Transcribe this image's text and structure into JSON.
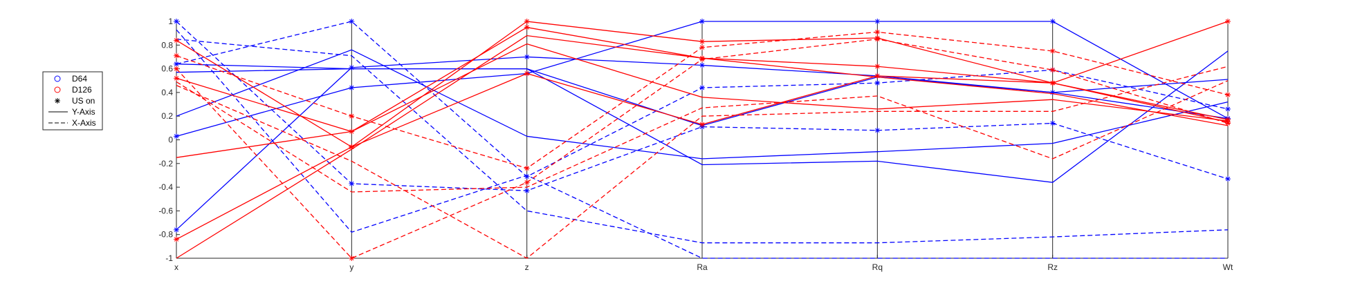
{
  "chart_data": {
    "type": "parallel-coordinates",
    "axes": [
      "x",
      "y",
      "z",
      "Ra",
      "Rq",
      "Rz",
      "Wt"
    ],
    "ylim": [
      -1,
      1
    ],
    "yticks": [
      "-1",
      "-0.8",
      "-0.6",
      "-0.4",
      "-0.2",
      "0",
      "0.2",
      "0.4",
      "0.6",
      "0.8",
      "1"
    ],
    "grid": false,
    "legend_position": "left",
    "legend": [
      {
        "label": "D64",
        "marker": "circle",
        "color": "#0000ff"
      },
      {
        "label": "D126",
        "marker": "circle",
        "color": "#ff0000"
      },
      {
        "label": "US on",
        "marker": "asterisk",
        "color": "#000000"
      },
      {
        "label": "Y-Axis",
        "linestyle": "solid",
        "color": "#000000"
      },
      {
        "label": "X-Axis",
        "linestyle": "dashed",
        "color": "#000000"
      }
    ],
    "colors": {
      "D64": "#0000ff",
      "D126": "#ff0000"
    },
    "series": [
      {
        "group": "D64",
        "style": "solid",
        "us_on": true,
        "values": [
          -0.76,
          0.61,
          0.7,
          0.63,
          0.54,
          0.4,
          0.18
        ]
      },
      {
        "group": "D64",
        "style": "solid",
        "us_on": true,
        "values": [
          0.03,
          0.44,
          0.56,
          1.0,
          1.0,
          1.0,
          0.18
        ]
      },
      {
        "group": "D64",
        "style": "solid",
        "us_on": false,
        "values": [
          0.57,
          0.6,
          0.6,
          0.12,
          0.53,
          0.4,
          0.51
        ]
      },
      {
        "group": "D64",
        "style": "solid",
        "us_on": false,
        "values": [
          0.2,
          0.76,
          0.03,
          -0.16,
          -0.1,
          -0.03,
          0.32
        ]
      },
      {
        "group": "D64",
        "style": "solid",
        "us_on": false,
        "values": [
          0.64,
          0.6,
          0.6,
          -0.21,
          -0.18,
          -0.36,
          0.75
        ]
      },
      {
        "group": "D64",
        "style": "dashed",
        "us_on": true,
        "values": [
          0.64,
          1.0,
          -0.31,
          0.44,
          0.48,
          0.59,
          0.26
        ]
      },
      {
        "group": "D64",
        "style": "dashed",
        "us_on": true,
        "values": [
          1.0,
          -0.37,
          -0.43,
          0.11,
          0.08,
          0.14,
          -0.33
        ]
      },
      {
        "group": "D64",
        "style": "dashed",
        "us_on": false,
        "values": [
          0.85,
          0.71,
          -0.6,
          -0.87,
          -0.87,
          -0.82,
          -0.76
        ]
      },
      {
        "group": "D64",
        "style": "dashed",
        "us_on": false,
        "values": [
          0.93,
          -0.78,
          -0.3,
          -1.0,
          -1.0,
          -1.0,
          -1.0
        ]
      },
      {
        "group": "D126",
        "style": "solid",
        "us_on": true,
        "values": [
          -0.84,
          -0.06,
          1.0,
          0.83,
          0.86,
          0.48,
          0.17
        ]
      },
      {
        "group": "D126",
        "style": "solid",
        "us_on": true,
        "values": [
          0.52,
          0.07,
          0.95,
          0.69,
          0.62,
          0.48,
          1.0
        ]
      },
      {
        "group": "D126",
        "style": "solid",
        "us_on": false,
        "values": [
          -1.0,
          -0.08,
          0.88,
          0.69,
          0.53,
          0.39,
          0.12
        ]
      },
      {
        "group": "D126",
        "style": "solid",
        "us_on": false,
        "values": [
          -0.15,
          0.07,
          0.81,
          0.36,
          0.26,
          0.34,
          0.16
        ]
      },
      {
        "group": "D126",
        "style": "solid",
        "us_on": true,
        "values": [
          0.84,
          -0.06,
          0.56,
          0.13,
          0.54,
          0.48,
          0.15
        ]
      },
      {
        "group": "D126",
        "style": "dashed",
        "us_on": true,
        "values": [
          0.71,
          0.2,
          -0.24,
          0.78,
          0.91,
          0.75,
          0.38
        ]
      },
      {
        "group": "D126",
        "style": "dashed",
        "us_on": true,
        "values": [
          0.6,
          -1.0,
          -0.36,
          0.68,
          0.85,
          0.59,
          0.14
        ]
      },
      {
        "group": "D126",
        "style": "dashed",
        "us_on": false,
        "values": [
          0.49,
          -0.44,
          -0.4,
          0.27,
          0.37,
          -0.16,
          0.5
        ]
      },
      {
        "group": "D126",
        "style": "dashed",
        "us_on": false,
        "values": [
          0.46,
          -0.18,
          -1.0,
          0.2,
          0.24,
          0.24,
          0.62
        ]
      }
    ]
  }
}
